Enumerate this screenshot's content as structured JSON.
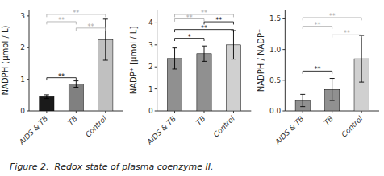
{
  "chart_data": [
    {
      "type": "bar",
      "ylabel": "NADPH (μmol / L)",
      "categories": [
        "AIDS & TB",
        "TB",
        "Control"
      ],
      "values": [
        0.45,
        0.85,
        2.25
      ],
      "errors": [
        0.06,
        0.1,
        0.65
      ],
      "colors": [
        "#1a1a1a",
        "#808080",
        "#c0c0c0"
      ],
      "ylim": [
        0,
        3.2
      ],
      "yticks": [
        0,
        1,
        2,
        3
      ],
      "grid": false,
      "annotations": [
        {
          "between": [
            "AIDS & TB",
            "TB"
          ],
          "y": 1.05,
          "label": "**",
          "color": "#000000"
        },
        {
          "between": [
            "AIDS & TB",
            "Control"
          ],
          "y": 3.05,
          "label": "**",
          "color": "#aaaaaa"
        },
        {
          "between": [
            "AIDS & TB",
            "TB"
          ],
          "y": 2.82,
          "label": "**",
          "color": "#aaaaaa"
        },
        {
          "between": [
            "TB",
            "Control"
          ],
          "y": 2.62,
          "label": "**",
          "color": "#aaaaaa"
        }
      ]
    },
    {
      "type": "bar",
      "ylabel": "NADP⁺ [μmol / L]",
      "categories": [
        "AIDS & TB",
        "TB",
        "Control"
      ],
      "values": [
        2.38,
        2.6,
        3.0
      ],
      "errors": [
        0.48,
        0.35,
        0.65
      ],
      "colors": [
        "#909090",
        "#909090",
        "#d0d0d0"
      ],
      "ylim": [
        0,
        4.6
      ],
      "yticks": [
        0,
        1,
        2,
        3,
        4
      ],
      "grid": false,
      "annotations": [
        {
          "between": [
            "AIDS & TB",
            "TB"
          ],
          "y": 3.3,
          "label": "*",
          "color": "#000000"
        },
        {
          "between": [
            "AIDS & TB",
            "Control"
          ],
          "y": 3.7,
          "label": "**",
          "color": "#000000"
        },
        {
          "between": [
            "TB",
            "Control"
          ],
          "y": 4.05,
          "label": "**",
          "color": "#000000"
        },
        {
          "between": [
            "AIDS & TB",
            "Control"
          ],
          "y": 4.38,
          "label": "**",
          "color": "#aaaaaa"
        },
        {
          "between": [
            "AIDS & TB",
            "TB"
          ],
          "y": 4.18,
          "label": "**",
          "color": "#aaaaaa"
        }
      ]
    },
    {
      "type": "bar",
      "ylabel": "NADPH / NADP⁺",
      "categories": [
        "AIDS & TB",
        "TB",
        "Control"
      ],
      "values": [
        0.17,
        0.35,
        0.85
      ],
      "errors": [
        0.1,
        0.18,
        0.38
      ],
      "colors": [
        "#909090",
        "#909090",
        "#d0d0d0"
      ],
      "ylim": [
        0,
        1.65
      ],
      "yticks": [
        {
          "value": 0,
          "label": "0.0"
        },
        0.5,
        {
          "value": 1,
          "label": "1.0"
        },
        1.5
      ],
      "grid": false,
      "annotations": [
        {
          "between": [
            "AIDS & TB",
            "TB"
          ],
          "y": 0.65,
          "label": "**",
          "color": "#000000"
        },
        {
          "between": [
            "AIDS & TB",
            "Control"
          ],
          "y": 1.52,
          "label": "**",
          "color": "#aaaaaa"
        },
        {
          "between": [
            "AIDS & TB",
            "TB"
          ],
          "y": 1.38,
          "label": "**",
          "color": "#aaaaaa"
        },
        {
          "between": [
            "TB",
            "Control"
          ],
          "y": 1.24,
          "label": "**",
          "color": "#aaaaaa"
        }
      ]
    }
  ],
  "caption": "Figure 2.  Redox state of plasma coenzyme II."
}
